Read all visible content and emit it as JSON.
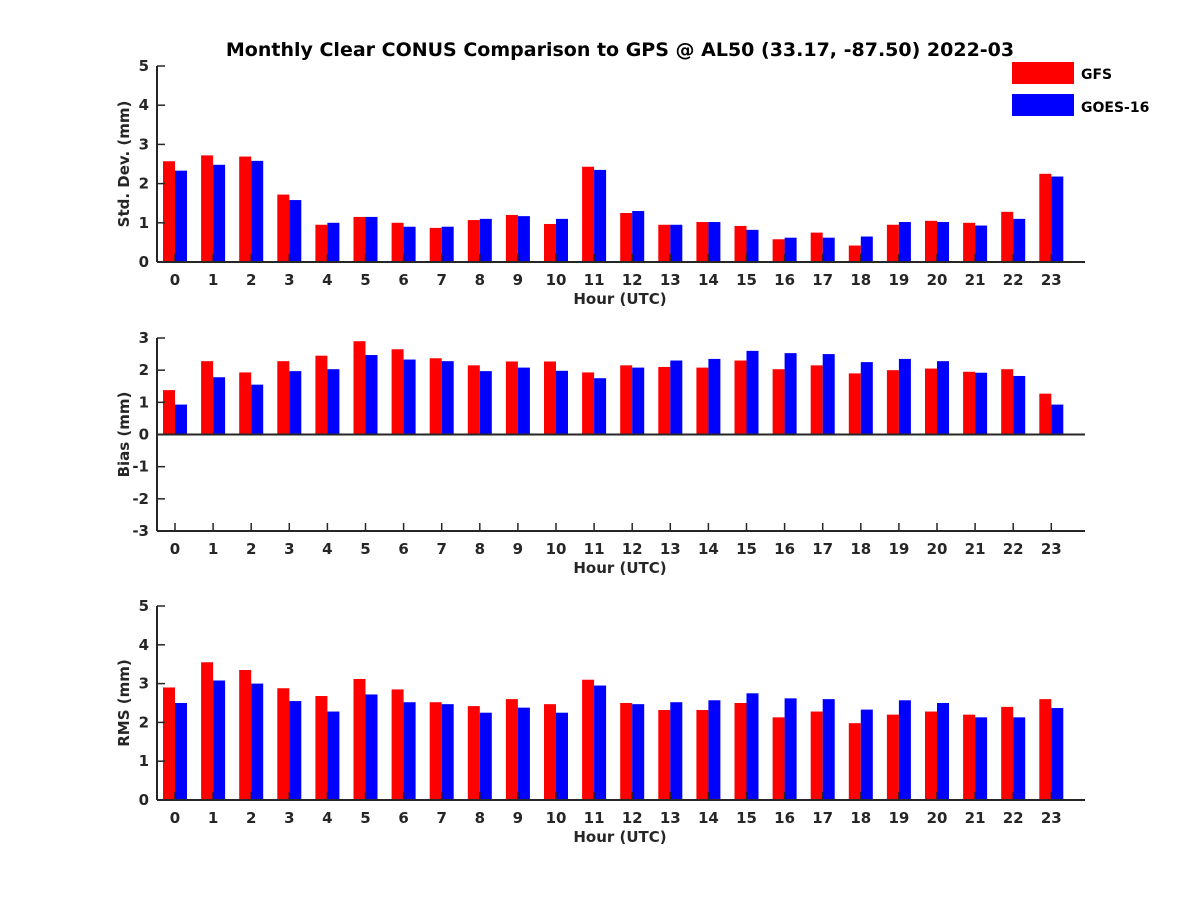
{
  "title": "Monthly Clear CONUS Comparison to GPS @ AL50 (33.17, -87.50) 2022-03",
  "legend": [
    {
      "name": "GFS",
      "color": "#ff0000"
    },
    {
      "name": "GOES-16",
      "color": "#0000ff"
    }
  ],
  "chart_data": [
    {
      "type": "bar",
      "xlabel": "Hour (UTC)",
      "ylabel": "Std. Dev. (mm)",
      "ylim": [
        0,
        5
      ],
      "yticks": [
        0,
        1,
        2,
        3,
        4,
        5
      ],
      "categories": [
        "0",
        "1",
        "2",
        "3",
        "4",
        "5",
        "6",
        "7",
        "8",
        "9",
        "10",
        "11",
        "12",
        "13",
        "14",
        "15",
        "16",
        "17",
        "18",
        "19",
        "20",
        "21",
        "22",
        "23"
      ],
      "series": [
        {
          "name": "GFS",
          "color": "#ff0000",
          "values": [
            2.57,
            2.72,
            2.69,
            1.72,
            0.95,
            1.15,
            1.0,
            0.87,
            1.07,
            1.2,
            0.97,
            2.43,
            1.25,
            0.95,
            1.02,
            0.92,
            0.58,
            0.75,
            0.42,
            0.95,
            1.05,
            1.0,
            1.28,
            2.25
          ]
        },
        {
          "name": "GOES-16",
          "color": "#0000ff",
          "values": [
            2.33,
            2.48,
            2.58,
            1.58,
            1.0,
            1.15,
            0.9,
            0.9,
            1.1,
            1.17,
            1.1,
            2.35,
            1.3,
            0.95,
            1.02,
            0.82,
            0.62,
            0.62,
            0.65,
            1.02,
            1.02,
            0.93,
            1.1,
            2.18
          ]
        }
      ]
    },
    {
      "type": "bar",
      "xlabel": "Hour (UTC)",
      "ylabel": "Bias (mm)",
      "ylim": [
        -3,
        3
      ],
      "yticks": [
        -3,
        -2,
        -1,
        0,
        1,
        2,
        3
      ],
      "categories": [
        "0",
        "1",
        "2",
        "3",
        "4",
        "5",
        "6",
        "7",
        "8",
        "9",
        "10",
        "11",
        "12",
        "13",
        "14",
        "15",
        "16",
        "17",
        "18",
        "19",
        "20",
        "21",
        "22",
        "23"
      ],
      "series": [
        {
          "name": "GFS",
          "color": "#ff0000",
          "values": [
            1.38,
            2.28,
            1.93,
            2.28,
            2.45,
            2.9,
            2.65,
            2.37,
            2.15,
            2.27,
            2.27,
            1.93,
            2.15,
            2.1,
            2.08,
            2.3,
            2.03,
            2.15,
            1.9,
            2.0,
            2.05,
            1.95,
            2.03,
            1.27
          ]
        },
        {
          "name": "GOES-16",
          "color": "#0000ff",
          "values": [
            0.93,
            1.78,
            1.55,
            1.97,
            2.03,
            2.47,
            2.33,
            2.28,
            1.97,
            2.08,
            1.98,
            1.75,
            2.08,
            2.3,
            2.35,
            2.6,
            2.53,
            2.5,
            2.25,
            2.35,
            2.28,
            1.92,
            1.82,
            0.93
          ]
        }
      ]
    },
    {
      "type": "bar",
      "xlabel": "Hour (UTC)",
      "ylabel": "RMS (mm)",
      "ylim": [
        0,
        5
      ],
      "yticks": [
        0,
        1,
        2,
        3,
        4,
        5
      ],
      "categories": [
        "0",
        "1",
        "2",
        "3",
        "4",
        "5",
        "6",
        "7",
        "8",
        "9",
        "10",
        "11",
        "12",
        "13",
        "14",
        "15",
        "16",
        "17",
        "18",
        "19",
        "20",
        "21",
        "22",
        "23"
      ],
      "series": [
        {
          "name": "GFS",
          "color": "#ff0000",
          "values": [
            2.9,
            3.55,
            3.35,
            2.88,
            2.68,
            3.12,
            2.85,
            2.52,
            2.42,
            2.6,
            2.47,
            3.1,
            2.5,
            2.32,
            2.32,
            2.5,
            2.13,
            2.28,
            1.98,
            2.2,
            2.28,
            2.2,
            2.4,
            2.6
          ]
        },
        {
          "name": "GOES-16",
          "color": "#0000ff",
          "values": [
            2.5,
            3.08,
            3.0,
            2.55,
            2.28,
            2.72,
            2.52,
            2.47,
            2.25,
            2.38,
            2.25,
            2.95,
            2.47,
            2.52,
            2.57,
            2.75,
            2.62,
            2.6,
            2.33,
            2.57,
            2.5,
            2.13,
            2.13,
            2.37
          ]
        }
      ]
    }
  ]
}
